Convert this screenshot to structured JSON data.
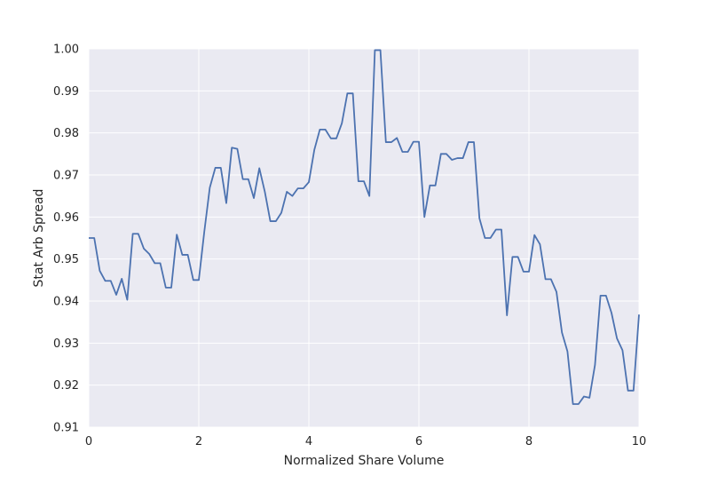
{
  "chart_data": {
    "type": "line",
    "xlabel": "Normalized Share Volume",
    "ylabel": "Stat Arb Spread",
    "xlim": [
      0,
      10
    ],
    "ylim": [
      0.91,
      1.0
    ],
    "xticks": [
      0,
      2,
      4,
      6,
      8,
      10
    ],
    "xtick_labels": [
      "0",
      "2",
      "4",
      "6",
      "8",
      "10"
    ],
    "yticks": [
      0.91,
      0.92,
      0.93,
      0.94,
      0.95,
      0.96,
      0.97,
      0.98,
      0.99,
      1.0
    ],
    "ytick_labels": [
      "0.91",
      "0.92",
      "0.93",
      "0.94",
      "0.95",
      "0.96",
      "0.97",
      "0.98",
      "0.99",
      "1.00"
    ],
    "grid": true,
    "background_color": "#eaeaf2",
    "grid_color": "#ffffff",
    "line_color": "#4c72b0",
    "series": [
      {
        "x": [
          0.0,
          0.1,
          0.2,
          0.3,
          0.4,
          0.5,
          0.6,
          0.7,
          0.8,
          0.9,
          1.0,
          1.1,
          1.2,
          1.3,
          1.4,
          1.5,
          1.6,
          1.7,
          1.8,
          1.9,
          2.0,
          2.1,
          2.2,
          2.3,
          2.4,
          2.5,
          2.6,
          2.7,
          2.8,
          2.9,
          3.0,
          3.1,
          3.2,
          3.3,
          3.4,
          3.5,
          3.6,
          3.7,
          3.8,
          3.9,
          4.0,
          4.1,
          4.2,
          4.3,
          4.4,
          4.5,
          4.6,
          4.7,
          4.8,
          4.9,
          5.0,
          5.1,
          5.2,
          5.3,
          5.4,
          5.5,
          5.6,
          5.7,
          5.8,
          5.9,
          6.0,
          6.1,
          6.2,
          6.3,
          6.4,
          6.5,
          6.6,
          6.7,
          6.8,
          6.9,
          7.0,
          7.1,
          7.2,
          7.3,
          7.4,
          7.5,
          7.6,
          7.7,
          7.8,
          7.9,
          8.0,
          8.1,
          8.2,
          8.3,
          8.4,
          8.5,
          8.6,
          8.7,
          8.8,
          8.9,
          9.0,
          9.1,
          9.2,
          9.3,
          9.4,
          9.5,
          9.6,
          9.7,
          9.8,
          9.9,
          10.0
        ],
        "values": [
          0.955,
          0.955,
          0.9472,
          0.9448,
          0.9448,
          0.9415,
          0.9453,
          0.9403,
          0.956,
          0.956,
          0.9525,
          0.9512,
          0.949,
          0.949,
          0.9432,
          0.9432,
          0.9558,
          0.951,
          0.951,
          0.945,
          0.945,
          0.9565,
          0.967,
          0.9717,
          0.9717,
          0.9633,
          0.9765,
          0.9762,
          0.969,
          0.969,
          0.9645,
          0.9716,
          0.966,
          0.959,
          0.959,
          0.961,
          0.966,
          0.965,
          0.9668,
          0.9668,
          0.9683,
          0.976,
          0.9808,
          0.9808,
          0.9787,
          0.9787,
          0.9823,
          0.9894,
          0.9894,
          0.9685,
          0.9685,
          0.965,
          0.9997,
          0.9997,
          0.9778,
          0.9778,
          0.9788,
          0.9755,
          0.9755,
          0.9779,
          0.9779,
          0.96,
          0.9675,
          0.9675,
          0.975,
          0.975,
          0.9736,
          0.974,
          0.974,
          0.9778,
          0.9778,
          0.9597,
          0.955,
          0.955,
          0.957,
          0.957,
          0.9366,
          0.9505,
          0.9505,
          0.947,
          0.947,
          0.9557,
          0.9535,
          0.9452,
          0.9452,
          0.9422,
          0.9325,
          0.928,
          0.9155,
          0.9155,
          0.9173,
          0.917,
          0.9248,
          0.9413,
          0.9413,
          0.9372,
          0.9311,
          0.9283,
          0.9187,
          0.9187,
          0.9368
        ]
      }
    ]
  }
}
